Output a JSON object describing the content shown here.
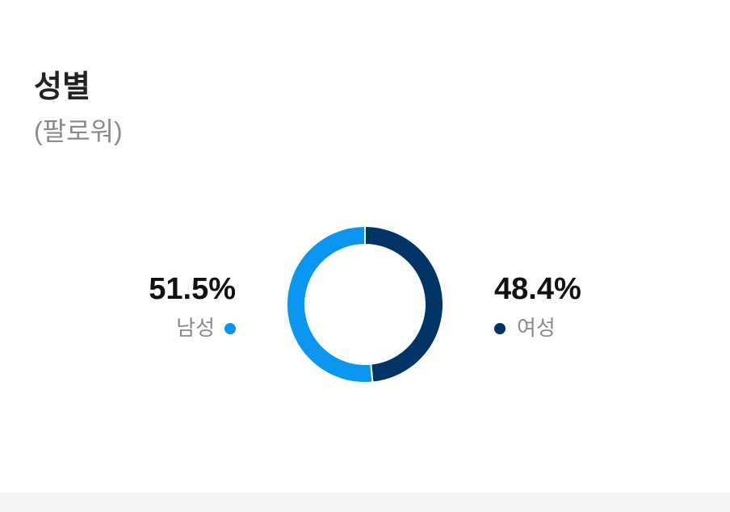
{
  "chart_data": {
    "type": "donut",
    "title": "성별",
    "subtitle": "(팔로워)",
    "categories": [
      "남성",
      "여성"
    ],
    "values": [
      51.5,
      48.4
    ],
    "value_labels": [
      "51.5%",
      "48.4%"
    ],
    "colors": [
      "#0a95f0",
      "#003366"
    ]
  }
}
